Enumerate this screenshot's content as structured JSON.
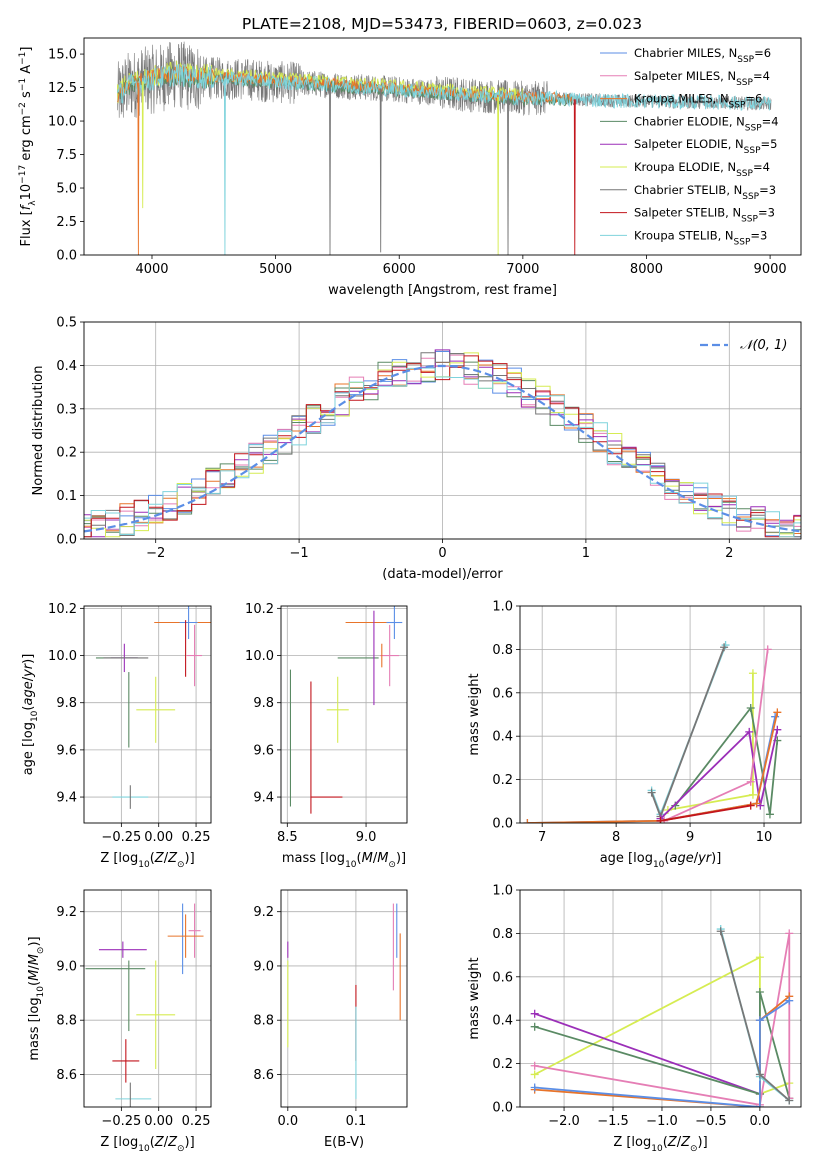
{
  "colors": {
    "Chabrier MILES": "#5b8ee6",
    "Salpeter MILES": "#e57eb5",
    "Kroupa MILES": "#e8742a",
    "Chabrier ELODIE": "#5a8a64",
    "Salpeter ELODIE": "#9b2fb8",
    "Kroupa ELODIE": "#d6ec52",
    "Chabrier STELIB": "#777777",
    "Salpeter STELIB": "#c2151c",
    "Kroupa STELIB": "#7fd3dc",
    "gauss": "#5b8ee6"
  },
  "chart_data": [
    {
      "id": "spectrum",
      "type": "line",
      "title": "PLATE=2108, MJD=53473, FIBERID=0603, z=0.023",
      "xlabel": "wavelength [Angstrom, rest frame]",
      "ylabel": "Flux [f_λ 10^-17 erg cm^-2 s^-1 A^-1]",
      "xlim": [
        3450,
        9250
      ],
      "ylim": [
        0,
        16.2
      ],
      "xticks": [
        "4000",
        "5000",
        "6000",
        "7000",
        "8000",
        "9000"
      ],
      "yticks": [
        "0.0",
        "2.5",
        "5.0",
        "7.5",
        "10.0",
        "12.5",
        "15.0"
      ],
      "legend_position": "top-right",
      "legend": [
        {
          "series": "Chabrier MILES",
          "label": "Chabrier MILES, N",
          "sub": "SSP",
          "tail": "=6"
        },
        {
          "series": "Salpeter MILES",
          "label": "Salpeter MILES, N",
          "sub": "SSP",
          "tail": "=4"
        },
        {
          "series": "Kroupa MILES",
          "label": "Kroupa MILES, N",
          "sub": "SSP",
          "tail": "=6"
        },
        {
          "series": "Chabrier ELODIE",
          "label": "Chabrier ELODIE, N",
          "sub": "SSP",
          "tail": "=4"
        },
        {
          "series": "Salpeter ELODIE",
          "label": "Salpeter ELODIE, N",
          "sub": "SSP",
          "tail": "=5"
        },
        {
          "series": "Kroupa ELODIE",
          "label": "Kroupa ELODIE, N",
          "sub": "SSP",
          "tail": "=4"
        },
        {
          "series": "Chabrier STELIB",
          "label": "Chabrier STELIB, N",
          "sub": "SSP",
          "tail": "=3"
        },
        {
          "series": "Salpeter STELIB",
          "label": "Salpeter STELIB, N",
          "sub": "SSP",
          "tail": "=3"
        },
        {
          "series": "Kroupa STELIB",
          "label": "Kroupa STELIB, N",
          "sub": "SSP",
          "tail": "=3"
        }
      ],
      "continuum": [
        [
          3720,
          11.8
        ],
        [
          3800,
          12.6
        ],
        [
          3900,
          12.9
        ],
        [
          4000,
          13.1
        ],
        [
          4100,
          13.3
        ],
        [
          4200,
          13.5
        ],
        [
          4300,
          13.3
        ],
        [
          4500,
          13.2
        ],
        [
          4800,
          13.1
        ],
        [
          5000,
          12.9
        ],
        [
          5300,
          12.8
        ],
        [
          5600,
          12.6
        ],
        [
          5900,
          12.4
        ],
        [
          6200,
          12.2
        ],
        [
          6500,
          12.0
        ],
        [
          6800,
          11.8
        ],
        [
          7000,
          11.7
        ],
        [
          7200,
          11.7
        ],
        [
          7500,
          11.6
        ],
        [
          7800,
          11.5
        ],
        [
          8000,
          11.5
        ],
        [
          8300,
          11.4
        ],
        [
          8600,
          11.4
        ],
        [
          8900,
          11.3
        ],
        [
          9010,
          11.3
        ]
      ],
      "drops": [
        {
          "x": 3890,
          "series": "Kroupa MILES",
          "y": 0.0
        },
        {
          "x": 3925,
          "series": "Kroupa ELODIE",
          "y": 3.5
        },
        {
          "x": 4590,
          "series": "Kroupa STELIB",
          "y": 0.0
        },
        {
          "x": 5440,
          "series": "Chabrier STELIB",
          "y": 0.0
        },
        {
          "x": 5850,
          "series": "Chabrier STELIB",
          "y": 0.2
        },
        {
          "x": 6800,
          "series": "Kroupa ELODIE",
          "y": 0.0
        },
        {
          "x": 6880,
          "series": "Chabrier STELIB",
          "y": 0.0
        },
        {
          "x": 7420,
          "series": "Salpeter STELIB",
          "y": 0.0
        }
      ]
    },
    {
      "id": "residuals",
      "type": "line",
      "xlabel": "(data-model)/error",
      "ylabel": "Normed distribution",
      "xlim": [
        -2.5,
        2.5
      ],
      "ylim": [
        0,
        0.5
      ],
      "xticks": [
        "−2",
        "−1",
        "0",
        "1",
        "2"
      ],
      "yticks": [
        "0.0",
        "0.1",
        "0.2",
        "0.3",
        "0.4",
        "0.5"
      ],
      "grid": true,
      "legend_position": "top-right",
      "legend": [
        {
          "series": "gauss",
          "label": "𝒩(0, 1)"
        }
      ],
      "bin_width": 0.1
    },
    {
      "id": "age_vs_Z",
      "type": "scatter",
      "xlabel": "Z [log10(Z/Z⊙)]",
      "ylabel": "age [log10(age/yr)]",
      "xlim": [
        -0.5,
        0.35
      ],
      "ylim": [
        9.29,
        10.21
      ],
      "xticks": [
        "−0.25",
        "0.00",
        "0.25"
      ],
      "yticks": [
        "9.4",
        "9.6",
        "9.8",
        "10.0",
        "10.2"
      ],
      "grid": true,
      "points": [
        {
          "series": "Kroupa MILES",
          "x": 0.16,
          "y": 10.14,
          "xerr": 0.19,
          "yerr": 0.0
        },
        {
          "series": "Chabrier MILES",
          "x": 0.2,
          "y": 10.14,
          "xerr": 0.06,
          "yerr": 0.07
        },
        {
          "series": "Salpeter MILES",
          "x": 0.24,
          "y": 10.0,
          "xerr": 0.05,
          "yerr": 0.13
        },
        {
          "series": "Salpeter STELIB",
          "x": 0.18,
          "y": 10.03,
          "xerr": 0.0,
          "yerr": 0.12
        },
        {
          "series": "Chabrier ELODIE",
          "x": -0.28,
          "y": 9.99,
          "xerr": 0.14,
          "yerr": 0.0
        },
        {
          "series": "Salpeter ELODIE",
          "x": -0.23,
          "y": 9.99,
          "xerr": 0.09,
          "yerr": 0.06
        },
        {
          "series": "Chabrier STELIB",
          "x": -0.22,
          "y": 9.99,
          "xerr": 0.15,
          "yerr": 0.0
        },
        {
          "series": "Kroupa ELODIE",
          "x": -0.02,
          "y": 9.77,
          "xerr": 0.13,
          "yerr": 0.14
        },
        {
          "series": "Chabrier ELODIE",
          "x": -0.2,
          "y": 9.77,
          "xerr": 0.0,
          "yerr": 0.16
        },
        {
          "series": "Kroupa STELIB",
          "x": -0.19,
          "y": 9.4,
          "xerr": 0.12,
          "yerr": 0.0
        },
        {
          "series": "Chabrier STELIB",
          "x": -0.19,
          "y": 9.4,
          "xerr": 0.0,
          "yerr": 0.05
        }
      ]
    },
    {
      "id": "age_vs_mass",
      "type": "scatter",
      "xlabel": "mass [log10(M/M⊙)]",
      "ylabel": "",
      "xlim": [
        8.46,
        9.26
      ],
      "ylim": [
        9.29,
        10.21
      ],
      "xticks": [
        "8.5",
        "9.0"
      ],
      "yticks": [
        "9.4",
        "9.6",
        "9.8",
        "10.0",
        "10.2"
      ],
      "grid": true,
      "points": [
        {
          "series": "Kroupa MILES",
          "x": 9.0,
          "y": 10.14,
          "xerr": 0.13,
          "yerr": 0.0
        },
        {
          "series": "Chabrier MILES",
          "x": 9.18,
          "y": 10.14,
          "xerr": 0.05,
          "yerr": 0.07
        },
        {
          "series": "Salpeter MILES",
          "x": 9.15,
          "y": 10.0,
          "xerr": 0.06,
          "yerr": 0.13
        },
        {
          "series": "Kroupa MILES",
          "x": 9.1,
          "y": 10.0,
          "xerr": 0.0,
          "yerr": 0.05
        },
        {
          "series": "Chabrier ELODIE",
          "x": 8.95,
          "y": 9.99,
          "xerr": 0.13,
          "yerr": 0.0
        },
        {
          "series": "Salpeter ELODIE",
          "x": 9.05,
          "y": 9.99,
          "xerr": 0.0,
          "yerr": 0.2
        },
        {
          "series": "Kroupa ELODIE",
          "x": 8.82,
          "y": 9.77,
          "xerr": 0.07,
          "yerr": 0.14
        },
        {
          "series": "Chabrier ELODIE",
          "x": 8.52,
          "y": 9.65,
          "xerr": 0.0,
          "yerr": 0.29
        },
        {
          "series": "Salpeter STELIB",
          "x": 8.65,
          "y": 9.61,
          "xerr": 0.0,
          "yerr": 0.28
        },
        {
          "series": "Salpeter STELIB",
          "x": 8.75,
          "y": 9.4,
          "xerr": 0.1,
          "yerr": 0.0
        }
      ]
    },
    {
      "id": "weight_vs_age",
      "type": "line",
      "xlabel": "age [log10(age/yr)]",
      "ylabel": "mass weight",
      "xlim": [
        6.7,
        10.5
      ],
      "ylim": [
        0,
        1.0
      ],
      "xticks": [
        "7",
        "8",
        "9",
        "10"
      ],
      "yticks": [
        "0.0",
        "0.2",
        "0.4",
        "0.6",
        "0.8",
        "1.0"
      ],
      "grid": true,
      "series": [
        {
          "name": "Kroupa STELIB",
          "x": [
            8.48,
            8.6,
            9.48
          ],
          "y": [
            0.15,
            0.04,
            0.82
          ]
        },
        {
          "name": "Chabrier STELIB",
          "x": [
            8.48,
            8.6,
            9.46
          ],
          "y": [
            0.14,
            0.03,
            0.81
          ]
        },
        {
          "name": "Kroupa ELODIE",
          "x": [
            8.7,
            9.85,
            9.85
          ],
          "y": [
            0.06,
            0.13,
            0.69
          ]
        },
        {
          "name": "Chabrier ELODIE",
          "x": [
            8.8,
            9.82,
            10.08,
            10.18
          ],
          "y": [
            0.08,
            0.53,
            0.04,
            0.38
          ]
        },
        {
          "name": "Salpeter ELODIE",
          "x": [
            8.6,
            9.8,
            9.95,
            10.18
          ],
          "y": [
            0.02,
            0.42,
            0.08,
            0.43
          ]
        },
        {
          "name": "Salpeter MILES",
          "x": [
            8.65,
            9.82,
            10.05
          ],
          "y": [
            0.01,
            0.19,
            0.8
          ]
        },
        {
          "name": "Chabrier MILES",
          "x": [
            6.8,
            8.6,
            9.9,
            10.15
          ],
          "y": [
            0.0,
            0.01,
            0.09,
            0.49
          ]
        },
        {
          "name": "Kroupa MILES",
          "x": [
            6.8,
            8.6,
            9.9,
            10.18
          ],
          "y": [
            0.0,
            0.01,
            0.09,
            0.51
          ]
        },
        {
          "name": "Salpeter STELIB",
          "x": [
            8.6,
            9.82
          ],
          "y": [
            0.01,
            0.08
          ]
        }
      ]
    },
    {
      "id": "mass_vs_Z",
      "type": "scatter",
      "xlabel": "Z [log10(Z/Z⊙)]",
      "ylabel": "mass [log10(M/M⊙)]",
      "xlim": [
        -0.5,
        0.35
      ],
      "ylim": [
        8.48,
        9.28
      ],
      "xticks": [
        "−0.25",
        "0.00",
        "0.25"
      ],
      "yticks": [
        "8.6",
        "8.8",
        "9.0",
        "9.2"
      ],
      "grid": true,
      "points": [
        {
          "series": "Chabrier MILES",
          "x": 0.16,
          "y": 9.1,
          "xerr": 0.0,
          "yerr": 0.13
        },
        {
          "series": "Salpeter MILES",
          "x": 0.24,
          "y": 9.13,
          "xerr": 0.04,
          "yerr": 0.1
        },
        {
          "series": "Kroupa MILES",
          "x": 0.18,
          "y": 9.11,
          "xerr": 0.12,
          "yerr": 0.08
        },
        {
          "series": "Salpeter ELODIE",
          "x": -0.24,
          "y": 9.06,
          "xerr": 0.16,
          "yerr": 0.03
        },
        {
          "series": "Chabrier ELODIE",
          "x": -0.29,
          "y": 8.99,
          "xerr": 0.2,
          "yerr": 0.0
        },
        {
          "series": "Chabrier ELODIE",
          "x": -0.2,
          "y": 8.89,
          "xerr": 0.0,
          "yerr": 0.13
        },
        {
          "series": "Kroupa ELODIE",
          "x": -0.02,
          "y": 8.82,
          "xerr": 0.13,
          "yerr": 0.2
        },
        {
          "series": "Salpeter STELIB",
          "x": -0.22,
          "y": 8.65,
          "xerr": 0.09,
          "yerr": 0.08
        },
        {
          "series": "Kroupa STELIB",
          "x": -0.17,
          "y": 8.51,
          "xerr": 0.12,
          "yerr": 0.0
        },
        {
          "series": "Chabrier STELIB",
          "x": -0.19,
          "y": 8.51,
          "xerr": 0.0,
          "yerr": 0.06
        }
      ]
    },
    {
      "id": "mass_vs_EBV",
      "type": "scatter",
      "xlabel": "E(B-V)",
      "ylabel": "",
      "xlim": [
        -0.01,
        0.175
      ],
      "ylim": [
        8.48,
        9.28
      ],
      "xticks": [
        "0.0",
        "0.1"
      ],
      "yticks": [
        "8.6",
        "8.8",
        "9.0",
        "9.2"
      ],
      "grid": true,
      "points": [
        {
          "series": "Salpeter ELODIE",
          "x": 0.0,
          "y": 9.06,
          "xerr": 0.0,
          "yerr": 0.03
        },
        {
          "series": "Kroupa ELODIE",
          "x": 0.0,
          "y": 8.86,
          "xerr": 0.0,
          "yerr": 0.16
        },
        {
          "series": "Salpeter STELIB",
          "x": 0.1,
          "y": 8.79,
          "xerr": 0.0,
          "yerr": 0.14
        },
        {
          "series": "Kroupa STELIB",
          "x": 0.1,
          "y": 8.68,
          "xerr": 0.0,
          "yerr": 0.17
        },
        {
          "series": "Salpeter MILES",
          "x": 0.155,
          "y": 9.07,
          "xerr": 0.0,
          "yerr": 0.16
        },
        {
          "series": "Chabrier MILES",
          "x": 0.16,
          "y": 9.13,
          "xerr": 0.0,
          "yerr": 0.1
        },
        {
          "series": "Kroupa MILES",
          "x": 0.165,
          "y": 8.96,
          "xerr": 0.0,
          "yerr": 0.16
        }
      ]
    },
    {
      "id": "weight_vs_Z",
      "type": "line",
      "xlabel": "Z [log10(Z/Z⊙)]",
      "ylabel": "mass weight",
      "xlim": [
        -2.45,
        0.42
      ],
      "ylim": [
        0,
        1.0
      ],
      "xticks": [
        "−2.0",
        "−1.5",
        "−1.0",
        "−0.5",
        "0.0"
      ],
      "yticks": [
        "0.0",
        "0.2",
        "0.4",
        "0.6",
        "0.8",
        "1.0"
      ],
      "grid": true,
      "series": [
        {
          "name": "Kroupa ELODIE",
          "x": [
            -2.3,
            0.0,
            0.0,
            0.3
          ],
          "y": [
            0.15,
            0.69,
            0.06,
            0.11
          ]
        },
        {
          "name": "Salpeter ELODIE",
          "x": [
            -2.3,
            0.0
          ],
          "y": [
            0.43,
            0.06
          ]
        },
        {
          "name": "Chabrier ELODIE",
          "x": [
            -2.3,
            0.0,
            0.0,
            0.3
          ],
          "y": [
            0.37,
            0.06,
            0.53,
            0.04
          ]
        },
        {
          "name": "Salpeter MILES",
          "x": [
            -2.3,
            0.0,
            0.3,
            0.3
          ],
          "y": [
            0.19,
            0.01,
            0.8,
            0.04
          ]
        },
        {
          "name": "Kroupa MILES",
          "x": [
            -2.3,
            0.0,
            0.0,
            0.3
          ],
          "y": [
            0.08,
            0.0,
            0.4,
            0.51
          ]
        },
        {
          "name": "Chabrier MILES",
          "x": [
            -2.3,
            0.0,
            0.0,
            0.3
          ],
          "y": [
            0.09,
            0.0,
            0.4,
            0.49
          ]
        },
        {
          "name": "Kroupa STELIB",
          "x": [
            -0.4,
            0.0,
            0.3
          ],
          "y": [
            0.82,
            0.14,
            0.03
          ]
        },
        {
          "name": "Chabrier STELIB",
          "x": [
            -0.4,
            0.0,
            0.3
          ],
          "y": [
            0.81,
            0.15,
            0.03
          ]
        }
      ]
    }
  ]
}
